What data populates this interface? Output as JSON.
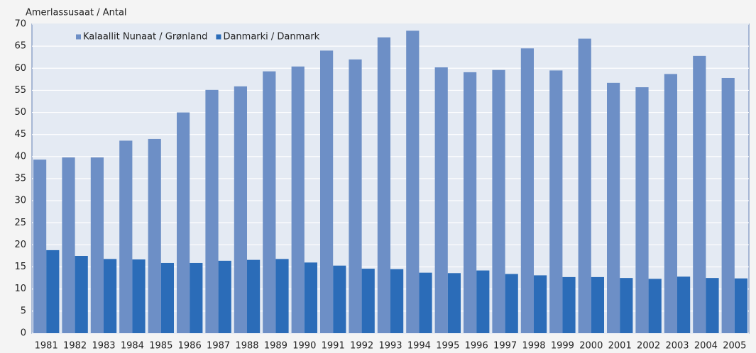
{
  "chart_data": {
    "type": "bar",
    "y_label": "Amerlassusaat / Antal",
    "categories": [
      "1981",
      "1982",
      "1983",
      "1984",
      "1985",
      "1986",
      "1987",
      "1988",
      "1989",
      "1990",
      "1991",
      "1992",
      "1993",
      "1994",
      "1995",
      "1996",
      "1997",
      "1998",
      "1999",
      "2000",
      "2001",
      "2002",
      "2003",
      "2004",
      "2005"
    ],
    "series": [
      {
        "name": "Kalaallit Nunaat / Grønland",
        "color": "#6d8fc6",
        "values": [
          39.3,
          39.8,
          39.8,
          43.6,
          44,
          50,
          55.1,
          55.9,
          59.3,
          60.4,
          64,
          62,
          67,
          68.5,
          60.2,
          59.1,
          59.6,
          64.5,
          59.5,
          66.7,
          56.7,
          55.7,
          58.7,
          62.8,
          57.8
        ]
      },
      {
        "name": "Danmarki / Danmark",
        "color": "#2b6cb8",
        "values": [
          18.8,
          17.5,
          16.8,
          16.7,
          15.9,
          15.9,
          16.4,
          16.6,
          16.8,
          16,
          15.3,
          14.6,
          14.5,
          13.7,
          13.6,
          14.2,
          13.4,
          13.1,
          12.7,
          12.7,
          12.5,
          12.3,
          12.8,
          12.5,
          12.4
        ]
      }
    ],
    "ylim": [
      0,
      70
    ],
    "yticks": [
      0,
      5,
      10,
      15,
      20,
      25,
      30,
      35,
      40,
      45,
      50,
      55,
      60,
      65,
      70
    ],
    "grid": true,
    "legend": "upper left"
  }
}
